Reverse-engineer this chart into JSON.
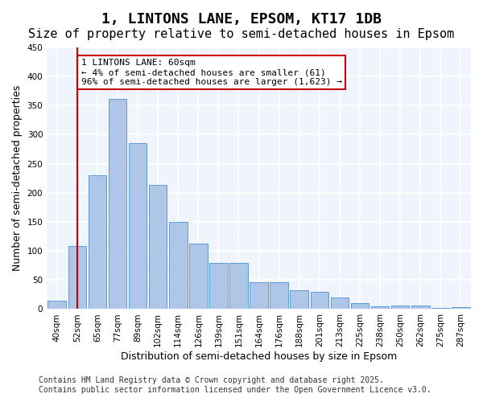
{
  "title_line1": "1, LINTONS LANE, EPSOM, KT17 1DB",
  "title_line2": "Size of property relative to semi-detached houses in Epsom",
  "xlabel": "Distribution of semi-detached houses by size in Epsom",
  "ylabel": "Number of semi-detached properties",
  "categories": [
    "40sqm",
    "52sqm",
    "65sqm",
    "77sqm",
    "89sqm",
    "102sqm",
    "114sqm",
    "126sqm",
    "139sqm",
    "151sqm",
    "164sqm",
    "176sqm",
    "188sqm",
    "201sqm",
    "213sqm",
    "225sqm",
    "238sqm",
    "250sqm",
    "262sqm",
    "275sqm",
    "287sqm"
  ],
  "values": [
    14,
    108,
    230,
    362,
    285,
    213,
    150,
    112,
    79,
    79,
    46,
    46,
    33,
    30,
    20,
    10,
    5,
    6,
    6,
    2,
    3
  ],
  "bar_color": "#aec6e8",
  "bar_edge_color": "#5b9bd5",
  "property_line_x": 1.0,
  "property_line_label": "1 LINTONS LANE: 60sqm",
  "pct_smaller": "4%",
  "count_smaller": 61,
  "pct_larger": "96%",
  "count_larger": 1623,
  "annotation_box_color": "#ffffff",
  "annotation_box_edge_color": "#cc0000",
  "vline_color": "#cc0000",
  "background_color": "#f0f4fc",
  "grid_color": "#ffffff",
  "ylim": [
    0,
    450
  ],
  "yticks": [
    0,
    50,
    100,
    150,
    200,
    250,
    300,
    350,
    400,
    450
  ],
  "footnote_line1": "Contains HM Land Registry data © Crown copyright and database right 2025.",
  "footnote_line2": "Contains public sector information licensed under the Open Government Licence v3.0.",
  "title_fontsize": 13,
  "subtitle_fontsize": 11,
  "axis_label_fontsize": 9,
  "tick_fontsize": 7.5,
  "annotation_fontsize": 8,
  "footnote_fontsize": 7
}
